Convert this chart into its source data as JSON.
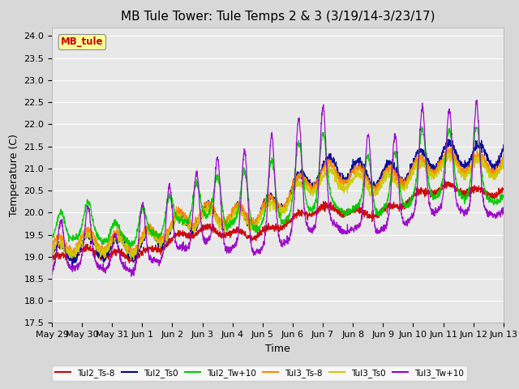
{
  "title": "MB Tule Tower: Tule Temps 2 & 3 (3/19/14-3/23/17)",
  "xlabel": "Time",
  "ylabel": "Temperature (C)",
  "ylim": [
    17.5,
    24.2
  ],
  "yticks": [
    17.5,
    18.0,
    18.5,
    19.0,
    19.5,
    20.0,
    20.5,
    21.0,
    21.5,
    22.0,
    22.5,
    23.0,
    23.5,
    24.0
  ],
  "xtick_labels": [
    "May 29",
    "May 30",
    "May 31",
    "Jun 1",
    "Jun 2",
    "Jun 3",
    "Jun 4",
    "Jun 5",
    "Jun 6",
    "Jun 7",
    "Jun 8",
    "Jun 9",
    "Jun 10",
    "Jun 11",
    "Jun 12",
    "Jun 13"
  ],
  "annotation_text": "MB_tule",
  "annotation_color": "#cc0000",
  "annotation_bg": "#ffff99",
  "series_colors": {
    "Tul2_Ts-8": "#cc0000",
    "Tul2_Ts0": "#000099",
    "Tul2_Tw+10": "#00cc00",
    "Tul3_Ts-8": "#ff8800",
    "Tul3_Ts0": "#cccc00",
    "Tul3_Tw+10": "#9900cc"
  },
  "background_color": "#d8d8d8",
  "plot_bg_color": "#e8e8e8",
  "grid_color": "#ffffff",
  "title_fontsize": 11,
  "tick_fontsize": 8,
  "label_fontsize": 9
}
